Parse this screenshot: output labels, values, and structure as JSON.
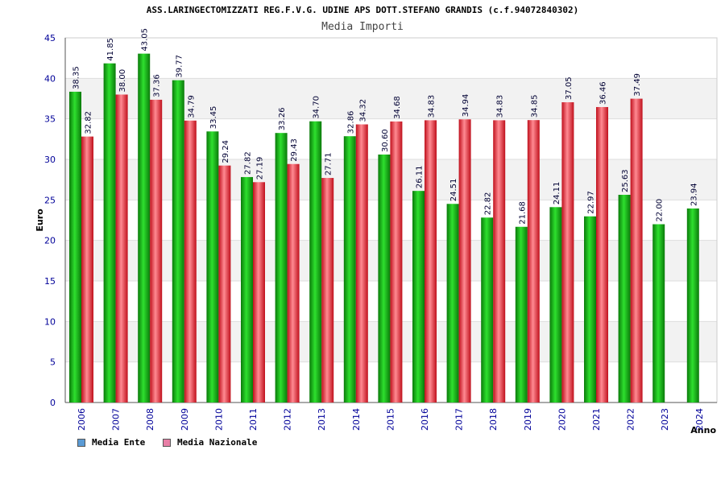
{
  "header": {
    "title": "ASS.LARINGECTOMIZZATI REG.F.V.G. UDINE APS DOTT.STEFANO GRANDIS (c.f.94072840302)",
    "subtitle": "Media Importi"
  },
  "legend": {
    "ente_label": "Media Ente",
    "nazionale_label": "Media Nazionale",
    "ente_swatch_color": "#5b9bd5",
    "nazionale_swatch_color": "#e87fa6"
  },
  "colors": {
    "ente": "#12b312",
    "nazionale": "#e8323c",
    "tick_label": "#000099",
    "band": "#f2f2f2"
  },
  "chart_data": {
    "type": "bar",
    "title": "Media Importi",
    "xlabel": "Anno",
    "ylabel": "Euro",
    "ylim": [
      0,
      45
    ],
    "yticks": [
      0,
      5,
      10,
      15,
      20,
      25,
      30,
      35,
      40,
      45
    ],
    "grid": true,
    "legend_position": "bottom-left",
    "categories": [
      "2006",
      "2007",
      "2008",
      "2009",
      "2010",
      "2011",
      "2012",
      "2013",
      "2014",
      "2015",
      "2016",
      "2017",
      "2018",
      "2019",
      "2020",
      "2021",
      "2022",
      "2023",
      "2024"
    ],
    "series": [
      {
        "name": "Media Ente",
        "values": [
          38.35,
          41.85,
          43.05,
          39.77,
          33.45,
          27.82,
          33.26,
          34.7,
          32.86,
          30.6,
          26.11,
          24.51,
          22.82,
          21.68,
          24.11,
          22.97,
          25.63,
          22.0,
          23.94
        ]
      },
      {
        "name": "Media Nazionale",
        "values": [
          32.82,
          38.0,
          37.36,
          34.79,
          29.24,
          27.19,
          29.43,
          27.71,
          34.32,
          34.68,
          34.83,
          34.94,
          34.83,
          34.85,
          37.05,
          36.46,
          37.49,
          null,
          null
        ]
      }
    ]
  }
}
